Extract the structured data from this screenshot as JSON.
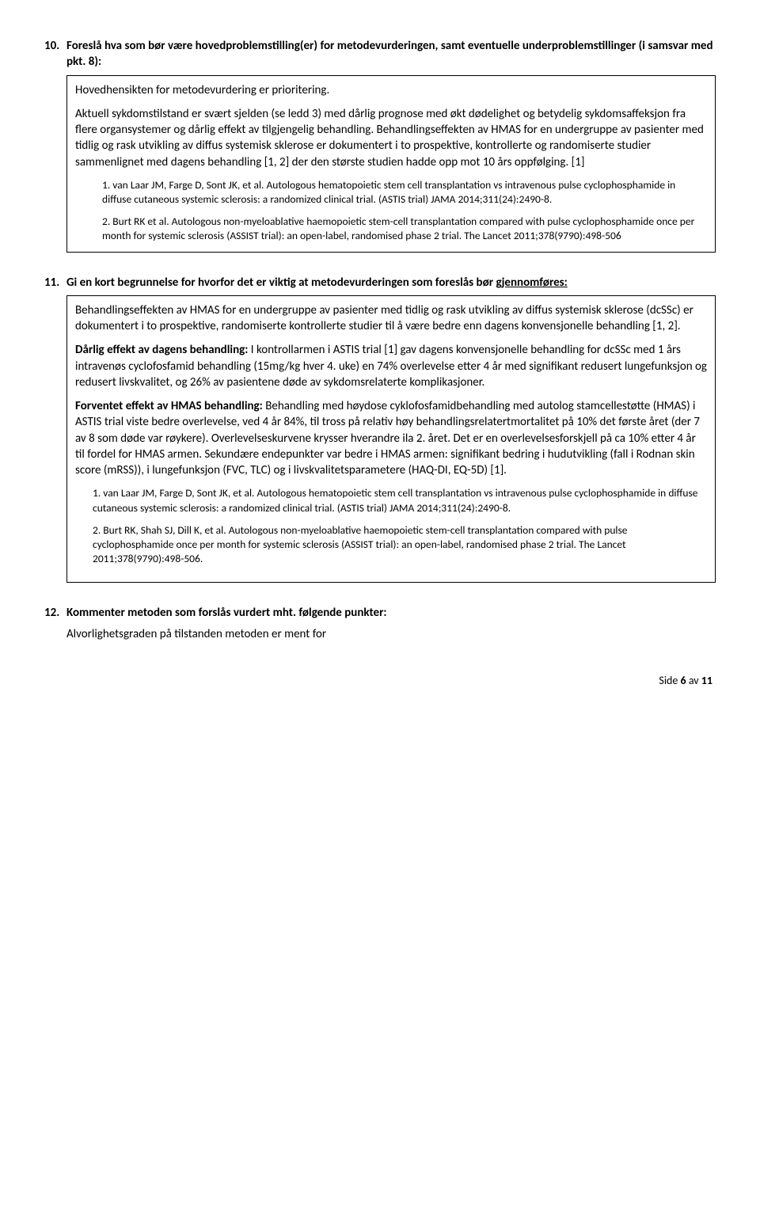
{
  "section10": {
    "number": "10.",
    "title": "Foreslå hva som bør være hovedproblemstilling(er) for metodevurderingen, samt eventuelle underproblemstillinger (i samsvar med pkt. 8):",
    "p1": "Hovedhensikten for metodevurdering er prioritering.",
    "p2": "Aktuell sykdomstilstand er svært sjelden (se ledd 3) med dårlig prognose med økt dødelighet og betydelig sykdomsaffeksjon fra flere organsystemer og dårlig effekt av tilgjengelig behandling. Behandlingseffekten av HMAS for en undergruppe av pasienter med tidlig og rask utvikling av diffus systemisk sklerose er dokumentert i to prospektive, kontrollerte og randomiserte studier sammenlignet med dagens behandling [1, 2] der den største studien hadde opp mot 10 års oppfølging. [1]",
    "ref1": "1. van Laar JM, Farge D, Sont JK, et al. Autologous hematopoietic stem cell transplantation vs intravenous pulse cyclophosphamide in diffuse cutaneous systemic sclerosis: a randomized clinical trial. (ASTIS trial) JAMA 2014;311(24):2490-8.",
    "ref2": "2. Burt RK et al. Autologous non-myeloablative haemopoietic stem-cell transplantation compared with pulse cyclophosphamide once per month for systemic sclerosis (ASSIST trial): an open-label, randomised phase 2 trial. The Lancet 2011;378(9790):498-506"
  },
  "section11": {
    "number": "11.",
    "title_prefix": "Gi en kort begrunnelse for hvorfor det er viktig at metodevurderingen som foreslås bør ",
    "title_underline": "gjennomføres:",
    "p1": "Behandlingseffekten av HMAS for en undergruppe av pasienter med tidlig og rask utvikling av diffus systemisk sklerose (dcSSc) er dokumentert i to prospektive, randomiserte kontrollerte studier til å være bedre enn dagens konvensjonelle behandling [1, 2].",
    "p2_bold": "Dårlig effekt av dagens behandling:",
    "p2_rest": " I kontrollarmen i ASTIS trial [1] gav dagens konvensjonelle behandling for dcSSc med 1 års intravenøs cyclofosfamid behandling (15mg/kg hver 4. uke) en 74% overlevelse etter 4 år med signifikant redusert lungefunksjon og redusert livskvalitet, og 26% av pasientene døde av sykdomsrelaterte komplikasjoner.",
    "p3_bold": "Forventet effekt av HMAS behandling:",
    "p3_rest": " Behandling med høydose cyklofosfamidbehandling med autolog stamcellestøtte (HMAS) i ASTIS trial viste bedre overlevelse, ved 4 år 84%, til tross på relativ høy behandlingsrelatertmortalitet på 10% det første året (der 7 av 8 som døde var røykere). Overlevelseskurvene krysser hverandre ila 2. året. Det er en overlevelsesforskjell på ca 10% etter 4 år til fordel for HMAS armen. Sekundære endepunkter var bedre i HMAS armen: signifikant bedring i hudutvikling (fall i Rodnan skin score (mRSS)), i lungefunksjon (FVC, TLC) og i livskvalitetsparametere (HAQ-DI, EQ-5D) [1].",
    "ref1": "1. van Laar JM, Farge D, Sont JK, et al. Autologous hematopoietic stem cell transplantation vs intravenous pulse cyclophosphamide in diffuse cutaneous systemic sclerosis: a randomized clinical trial. (ASTIS trial) JAMA 2014;311(24):2490-8.",
    "ref2": "2. Burt RK, Shah SJ, Dill K, et al. Autologous non-myeloablative haemopoietic stem-cell transplantation compared with pulse cyclophosphamide once per month for systemic sclerosis (ASSIST trial): an open-label, randomised phase 2 trial. The Lancet 2011;378(9790):498-506."
  },
  "section12": {
    "number": "12.",
    "title": "Kommenter metoden som forslås vurdert mht. følgende punkter:",
    "sub": "Alvorlighetsgraden på tilstanden metoden er ment for"
  },
  "footer": {
    "prefix": "Side ",
    "bold": "6",
    "suffix": " av ",
    "total": "11"
  }
}
